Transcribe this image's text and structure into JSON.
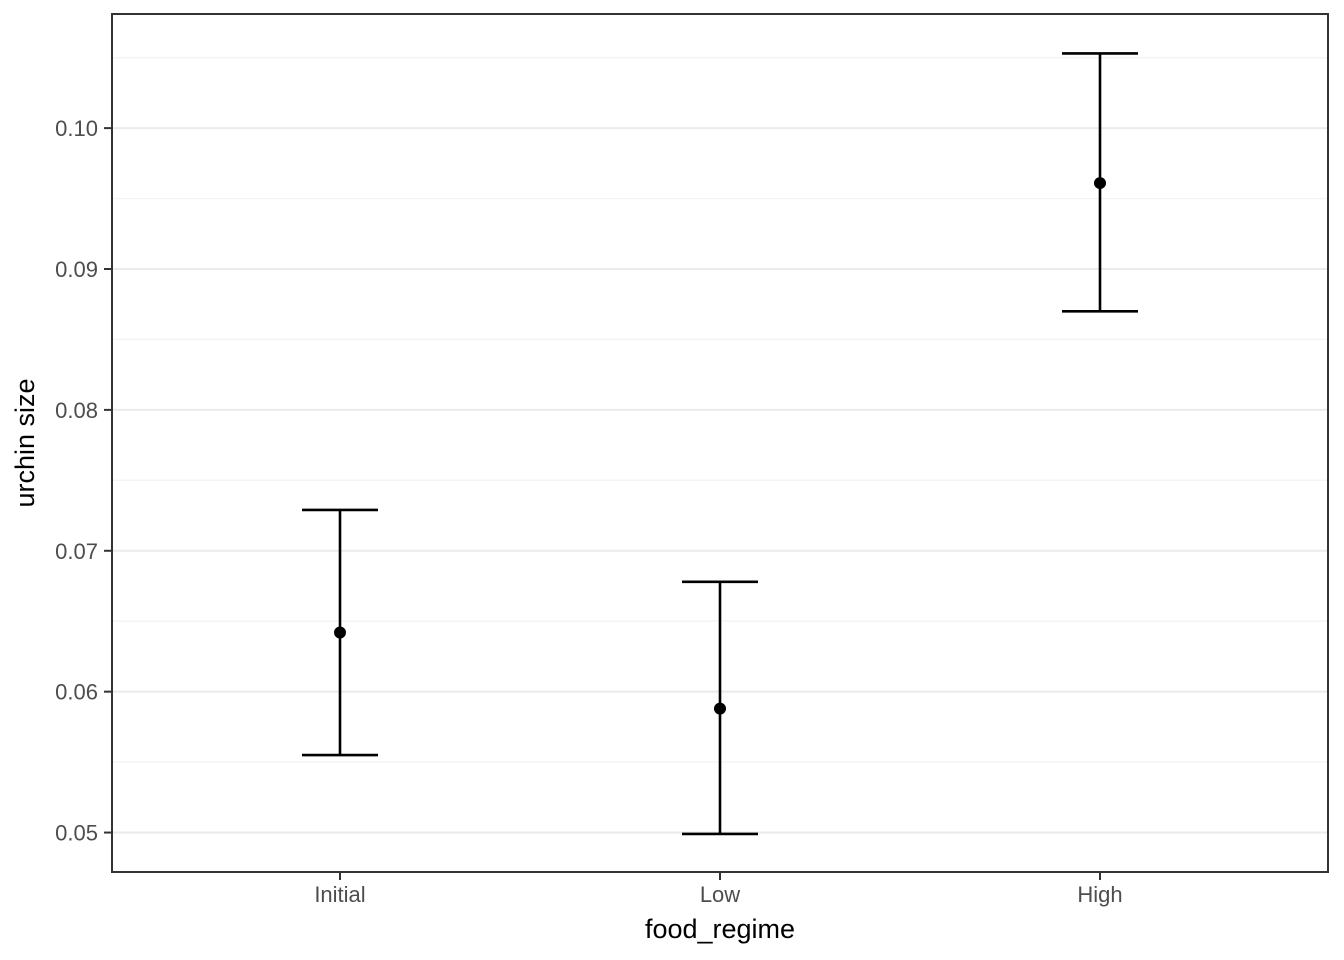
{
  "chart_data": {
    "type": "scatter",
    "subtype": "point-estimates-with-error-bars",
    "title": "",
    "xlabel": "food_regime",
    "ylabel": "urchin size",
    "categories": [
      "Initial",
      "Low",
      "High"
    ],
    "points": [
      {
        "category": "Initial",
        "mean": 0.0642,
        "lower": 0.0555,
        "upper": 0.0729
      },
      {
        "category": "Low",
        "mean": 0.0588,
        "lower": 0.0499,
        "upper": 0.0678
      },
      {
        "category": "High",
        "mean": 0.0961,
        "lower": 0.087,
        "upper": 0.1053
      }
    ],
    "y_ticks": [
      0.05,
      0.06,
      0.07,
      0.08,
      0.09,
      0.1
    ],
    "y_tick_labels": [
      "0.05",
      "0.06",
      "0.07",
      "0.08",
      "0.09",
      "0.10"
    ],
    "y_minor_ticks": [
      0.055,
      0.065,
      0.075,
      0.085,
      0.095,
      0.105
    ],
    "ylim": [
      0.0472,
      0.1081
    ],
    "grid": "major+minor",
    "legend": "none",
    "colors": {
      "background": "#ffffff",
      "panel_background": "#ffffff",
      "panel_border": "#333333",
      "grid_major": "#ebebeb",
      "grid_minor": "#f3f3f3",
      "tick_mark": "#333333",
      "tick_label": "#4d4d4d",
      "axis_title": "#000000",
      "data": "#000000"
    }
  }
}
